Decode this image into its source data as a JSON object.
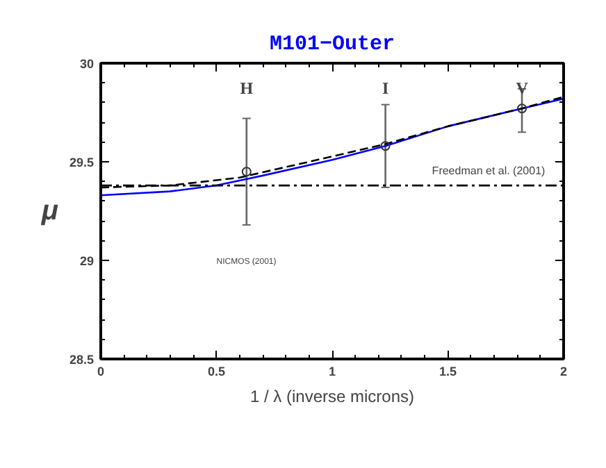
{
  "chart_data": {
    "type": "line",
    "title": "M101−Outer",
    "xlabel": "1 / λ (inverse microns)",
    "ylabel": "μ",
    "xlim": [
      0,
      2
    ],
    "ylim": [
      28.5,
      30
    ],
    "xticks": [
      0,
      0.5,
      1,
      1.5,
      2
    ],
    "yticks": [
      28.5,
      29,
      29.5,
      30
    ],
    "grid": false,
    "series": [
      {
        "color": "#0000ff",
        "line_style": "solid",
        "x": [
          0,
          0.3,
          0.5,
          0.7,
          1.0,
          1.23,
          1.5,
          1.82,
          2.0
        ],
        "values": [
          29.33,
          29.35,
          29.38,
          29.43,
          29.51,
          29.58,
          29.68,
          29.77,
          29.82
        ]
      },
      {
        "color": "#000000",
        "line_style": "dashed",
        "x": [
          0,
          0.3,
          0.6,
          0.9,
          1.23,
          1.5,
          1.82,
          2.0
        ],
        "values": [
          29.37,
          29.38,
          29.42,
          29.5,
          29.59,
          29.68,
          29.77,
          29.83
        ]
      },
      {
        "type": "scatter",
        "color": "#333333",
        "marker": "circle",
        "x": [
          0.63,
          1.23,
          1.82
        ],
        "values": [
          29.45,
          29.58,
          29.77
        ],
        "errors": [
          [
            29.18,
            29.72
          ],
          [
            29.37,
            29.79
          ],
          [
            29.65,
            29.87
          ]
        ]
      }
    ],
    "ref_lines": [
      {
        "axis": "y",
        "value": 29.38,
        "label": "Freedman et al. (2001)",
        "color": "#000000",
        "line_style": "dashdot"
      }
    ],
    "annotations": [
      "H",
      "I",
      "V",
      "NICMOS (2001)"
    ]
  }
}
